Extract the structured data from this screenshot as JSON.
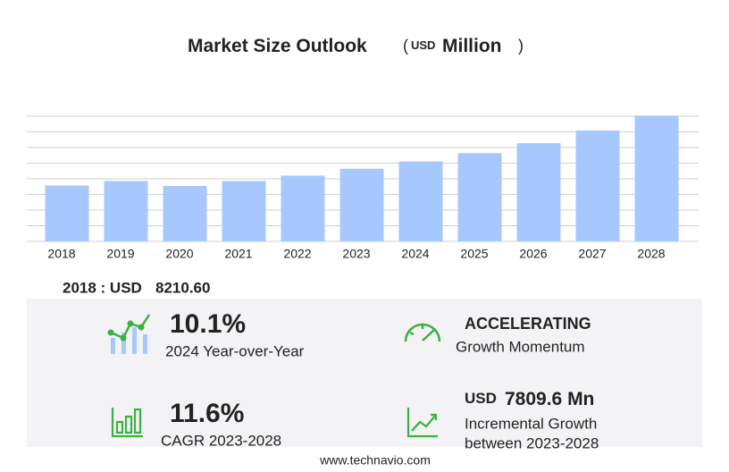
{
  "chart_data": {
    "type": "bar",
    "title": "Market Size Outlook",
    "title_unit": [
      "(",
      "USD",
      "Million",
      ")"
    ],
    "categories": [
      "2018",
      "2019",
      "2020",
      "2021",
      "2022",
      "2023",
      "2024",
      "2025",
      "2026",
      "2027",
      "2028"
    ],
    "values": [
      8210.6,
      8871,
      8150,
      8871,
      9665,
      10675,
      11753,
      12975,
      14432,
      16285,
      18485
    ],
    "color": "#a6c8ff",
    "ylim": [
      0,
      18400
    ],
    "yticks": [
      0,
      2300,
      4600,
      6900,
      9200,
      11500,
      13800,
      16100,
      18400
    ],
    "grid": true
  },
  "base": {
    "label": "2018 : USD",
    "value": "8210.60"
  },
  "stats": [
    {
      "value": "10.1%",
      "label": "2024 Year-over-Year"
    },
    {
      "value": "ACCELERATING",
      "label": "Growth Momentum"
    },
    {
      "value": "11.6%",
      "label": "CAGR 2023-2028"
    },
    {
      "currency": "USD",
      "value": "7809.6 Mn",
      "label": "Incremental Growth",
      "label2": "between 2023-2028"
    }
  ],
  "footer": "www.technavio.com"
}
